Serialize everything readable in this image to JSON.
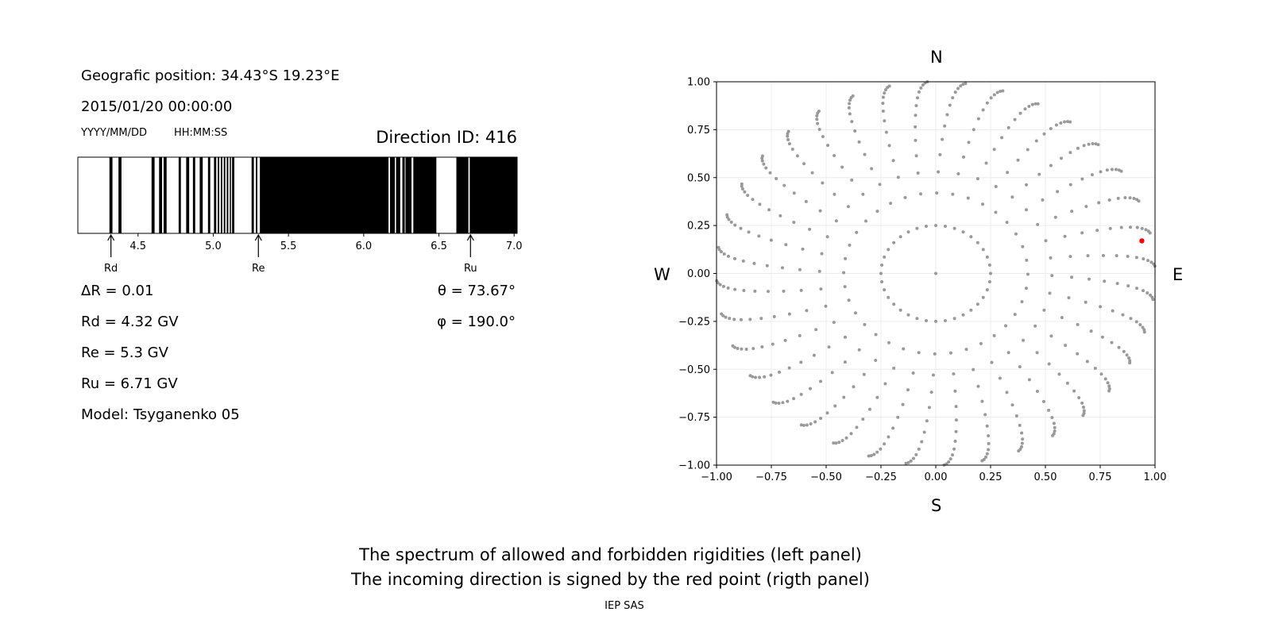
{
  "left_panel": {
    "position_label": "Geografic position: 34.43°S 19.23°E",
    "datetime": "2015/01/20 00:00:00",
    "date_format": "YYYY/MM/DD",
    "time_format": "HH:MM:SS",
    "direction_id": "Direction ID: 416",
    "delta_r": "ΔR = 0.01",
    "rd": "Rd = 4.32 GV",
    "re": "Re = 5.3 GV",
    "ru": "Ru = 6.71 GV",
    "model": "Model: Tsyganenko 05",
    "theta": "θ = 73.67°",
    "phi": "φ = 190.0°"
  },
  "chart_data": [
    {
      "type": "bar",
      "xlim": [
        4.1,
        7.02
      ],
      "xticks": [
        "4.5",
        "5.0",
        "5.5",
        "6.0",
        "6.5",
        "7.0"
      ],
      "forbidden_intervals": [
        [
          4.31,
          4.33
        ],
        [
          4.37,
          4.39
        ],
        [
          4.59,
          4.61
        ],
        [
          4.64,
          4.66
        ],
        [
          4.67,
          4.69
        ],
        [
          4.77,
          4.785
        ],
        [
          4.82,
          4.84
        ],
        [
          4.865,
          4.88
        ],
        [
          4.91,
          4.93
        ],
        [
          4.965,
          4.98
        ],
        [
          5.005,
          5.02
        ],
        [
          5.03,
          5.04
        ],
        [
          5.05,
          5.06
        ],
        [
          5.07,
          5.08
        ],
        [
          5.09,
          5.1
        ],
        [
          5.11,
          5.115
        ],
        [
          5.125,
          5.14
        ],
        [
          5.255,
          5.27
        ],
        [
          5.283,
          5.293
        ],
        [
          5.31,
          6.165
        ],
        [
          6.175,
          6.207
        ],
        [
          6.215,
          6.243
        ],
        [
          6.257,
          6.273
        ],
        [
          6.278,
          6.318
        ],
        [
          6.33,
          6.483
        ],
        [
          6.616,
          6.696
        ],
        [
          6.705,
          7.02
        ]
      ],
      "markers": [
        {
          "label": "Rd",
          "value": 4.32
        },
        {
          "label": "Re",
          "value": 5.3
        },
        {
          "label": "Ru",
          "value": 6.71
        }
      ]
    },
    {
      "type": "scatter",
      "xlim": [
        -1,
        1
      ],
      "ylim": [
        -1,
        1
      ],
      "grid": true,
      "xticks": [
        "−1.00",
        "−0.75",
        "−0.50",
        "−0.25",
        "0.00",
        "0.25",
        "0.50",
        "0.75",
        "1.00"
      ],
      "yticks": [
        "−1.00",
        "−0.75",
        "−0.50",
        "−0.25",
        "0.00",
        "0.25",
        "0.50",
        "0.75",
        "1.00"
      ],
      "compass": {
        "n": "N",
        "s": "S",
        "e": "E",
        "w": "W"
      },
      "grid_directions": {
        "azimuth_step_deg": 10,
        "radii": [
          0.25,
          0.42,
          0.53,
          0.62,
          0.7,
          0.77,
          0.83,
          0.88,
          0.92,
          0.95,
          0.97,
          0.985,
          0.995,
          1.0
        ],
        "center_point": [
          0,
          0
        ],
        "color": "#999999"
      },
      "incoming_direction": {
        "x": 0.94,
        "y": 0.17,
        "color": "#ff0000"
      }
    }
  ],
  "caption": {
    "line1": "The spectrum of allowed and forbidden rigidities (left panel)",
    "line2": "The incoming direction is signed by the red point (rigth panel)",
    "credit": "IEP SAS"
  }
}
